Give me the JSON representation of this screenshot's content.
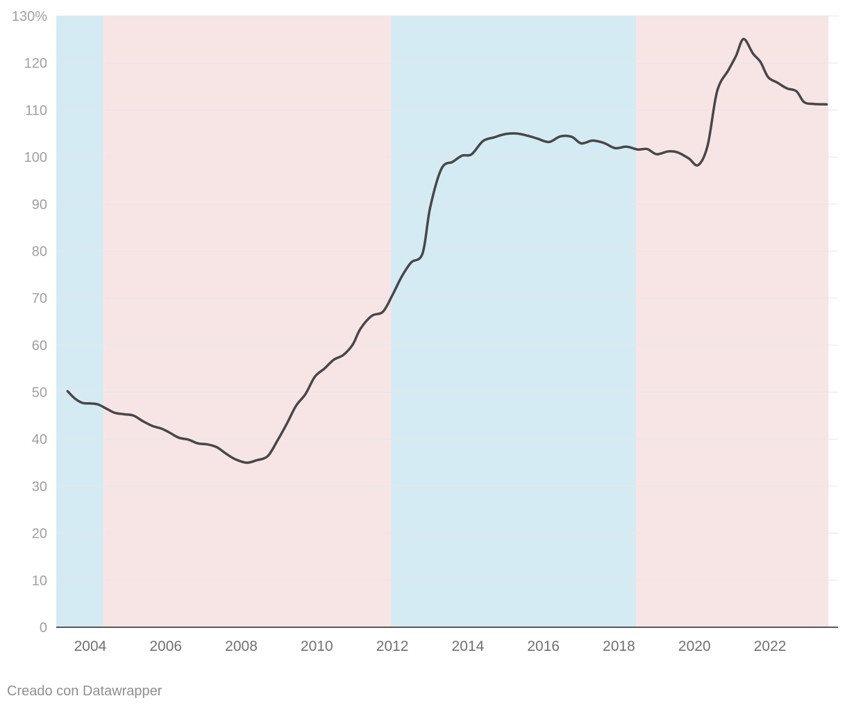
{
  "footer": {
    "credit": "Creado con Datawrapper"
  },
  "chart_data": {
    "type": "line",
    "title": "",
    "xlabel": "",
    "ylabel": "",
    "xlim": [
      2003.1,
      2023.8
    ],
    "ylim": [
      0,
      130
    ],
    "y_ticks": [
      0,
      10,
      20,
      30,
      40,
      50,
      60,
      70,
      80,
      90,
      100,
      110,
      120,
      130
    ],
    "y_tick_labels": [
      "0",
      "10",
      "20",
      "30",
      "40",
      "50",
      "60",
      "70",
      "80",
      "90",
      "100",
      "110",
      "120",
      "130%"
    ],
    "x_ticks": [
      2004,
      2006,
      2008,
      2010,
      2012,
      2014,
      2016,
      2018,
      2020,
      2022
    ],
    "x_tick_labels": [
      "2004",
      "2006",
      "2008",
      "2010",
      "2012",
      "2014",
      "2016",
      "2018",
      "2020",
      "2022"
    ],
    "grid": true,
    "background_bands": [
      {
        "start": 2003.1,
        "end": 2004.35,
        "color": "#d5ebf3"
      },
      {
        "start": 2004.35,
        "end": 2011.97,
        "color": "#f7e5e6"
      },
      {
        "start": 2011.97,
        "end": 2018.45,
        "color": "#d5ebf3"
      },
      {
        "start": 2018.45,
        "end": 2023.55,
        "color": "#f7e5e6"
      }
    ],
    "series": [
      {
        "color": "#474747",
        "x": [
          2003.4,
          2003.6,
          2003.8,
          2004.0,
          2004.2,
          2004.45,
          2004.65,
          2004.9,
          2005.15,
          2005.4,
          2005.65,
          2005.9,
          2006.1,
          2006.35,
          2006.6,
          2006.85,
          2007.1,
          2007.35,
          2007.6,
          2007.85,
          2008.15,
          2008.4,
          2008.7,
          2008.95,
          2009.2,
          2009.45,
          2009.7,
          2009.95,
          2010.2,
          2010.45,
          2010.7,
          2010.95,
          2011.15,
          2011.45,
          2011.75,
          2012.0,
          2012.25,
          2012.5,
          2012.8,
          2013.0,
          2013.3,
          2013.6,
          2013.85,
          2014.1,
          2014.4,
          2014.7,
          2015.0,
          2015.3,
          2015.6,
          2015.85,
          2016.15,
          2016.45,
          2016.75,
          2017.0,
          2017.3,
          2017.6,
          2017.9,
          2018.2,
          2018.5,
          2018.75,
          2019.0,
          2019.3,
          2019.55,
          2019.85,
          2020.1,
          2020.35,
          2020.6,
          2020.9,
          2021.1,
          2021.3,
          2021.55,
          2021.75,
          2021.95,
          2022.2,
          2022.45,
          2022.7,
          2022.9,
          2023.15,
          2023.5
        ],
        "values": [
          50.2,
          48.6,
          47.7,
          47.6,
          47.4,
          46.4,
          45.6,
          45.3,
          45.0,
          43.8,
          42.8,
          42.2,
          41.4,
          40.3,
          39.9,
          39.1,
          38.9,
          38.3,
          36.9,
          35.7,
          35.0,
          35.5,
          36.4,
          39.6,
          43.2,
          47.1,
          49.6,
          53.3,
          55.0,
          56.9,
          57.9,
          60.1,
          63.4,
          66.2,
          67.1,
          70.6,
          74.6,
          77.6,
          79.5,
          89.2,
          97.5,
          99.0,
          100.3,
          100.6,
          103.4,
          104.2,
          104.9,
          105.0,
          104.5,
          103.9,
          103.2,
          104.4,
          104.3,
          102.9,
          103.5,
          103.0,
          101.9,
          102.2,
          101.6,
          101.7,
          100.6,
          101.2,
          101.0,
          99.7,
          98.3,
          102.5,
          114.0,
          118.5,
          121.5,
          125.1,
          122.0,
          120.2,
          117.0,
          115.8,
          114.6,
          114.0,
          111.7,
          111.3,
          111.2
        ]
      }
    ]
  }
}
